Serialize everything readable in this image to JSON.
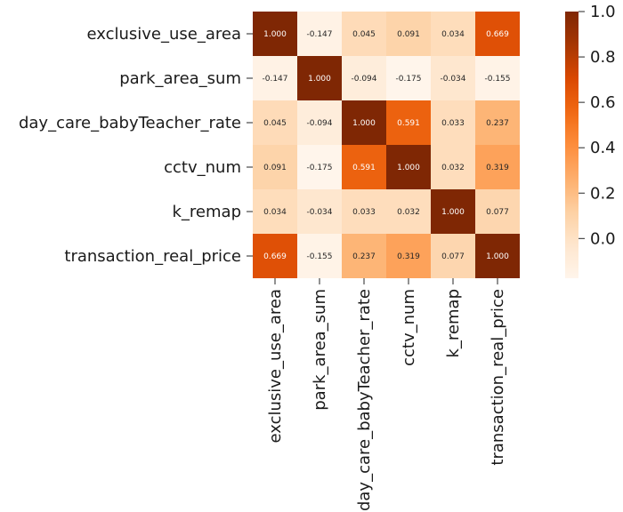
{
  "chart_data": {
    "type": "heatmap",
    "title": "",
    "xlabel": "",
    "ylabel": "",
    "labels": [
      "exclusive_use_area",
      "park_area_sum",
      "day_care_babyTeacher_rate",
      "cctv_num",
      "k_remap",
      "transaction_real_price"
    ],
    "matrix": [
      [
        1.0,
        -0.147,
        0.045,
        0.091,
        0.034,
        0.669
      ],
      [
        -0.147,
        1.0,
        -0.094,
        -0.175,
        -0.034,
        -0.155
      ],
      [
        0.045,
        -0.094,
        1.0,
        0.591,
        0.033,
        0.237
      ],
      [
        0.091,
        -0.175,
        0.591,
        1.0,
        0.032,
        0.319
      ],
      [
        0.034,
        -0.034,
        0.033,
        0.032,
        1.0,
        0.077
      ],
      [
        0.669,
        -0.155,
        0.237,
        0.319,
        0.077,
        1.0
      ]
    ],
    "value_format": "3 decimals",
    "colormap": "Oranges",
    "color_range": [
      -0.175,
      1.0
    ],
    "colorbar": {
      "ticks": [
        0.0,
        0.2,
        0.4,
        0.6,
        0.8,
        1.0
      ],
      "tick_labels": [
        "0.0",
        "0.2",
        "0.4",
        "0.6",
        "0.8",
        "1.0"
      ],
      "placement": "right"
    },
    "x_tick_rotation": "vertical",
    "grid": false
  }
}
